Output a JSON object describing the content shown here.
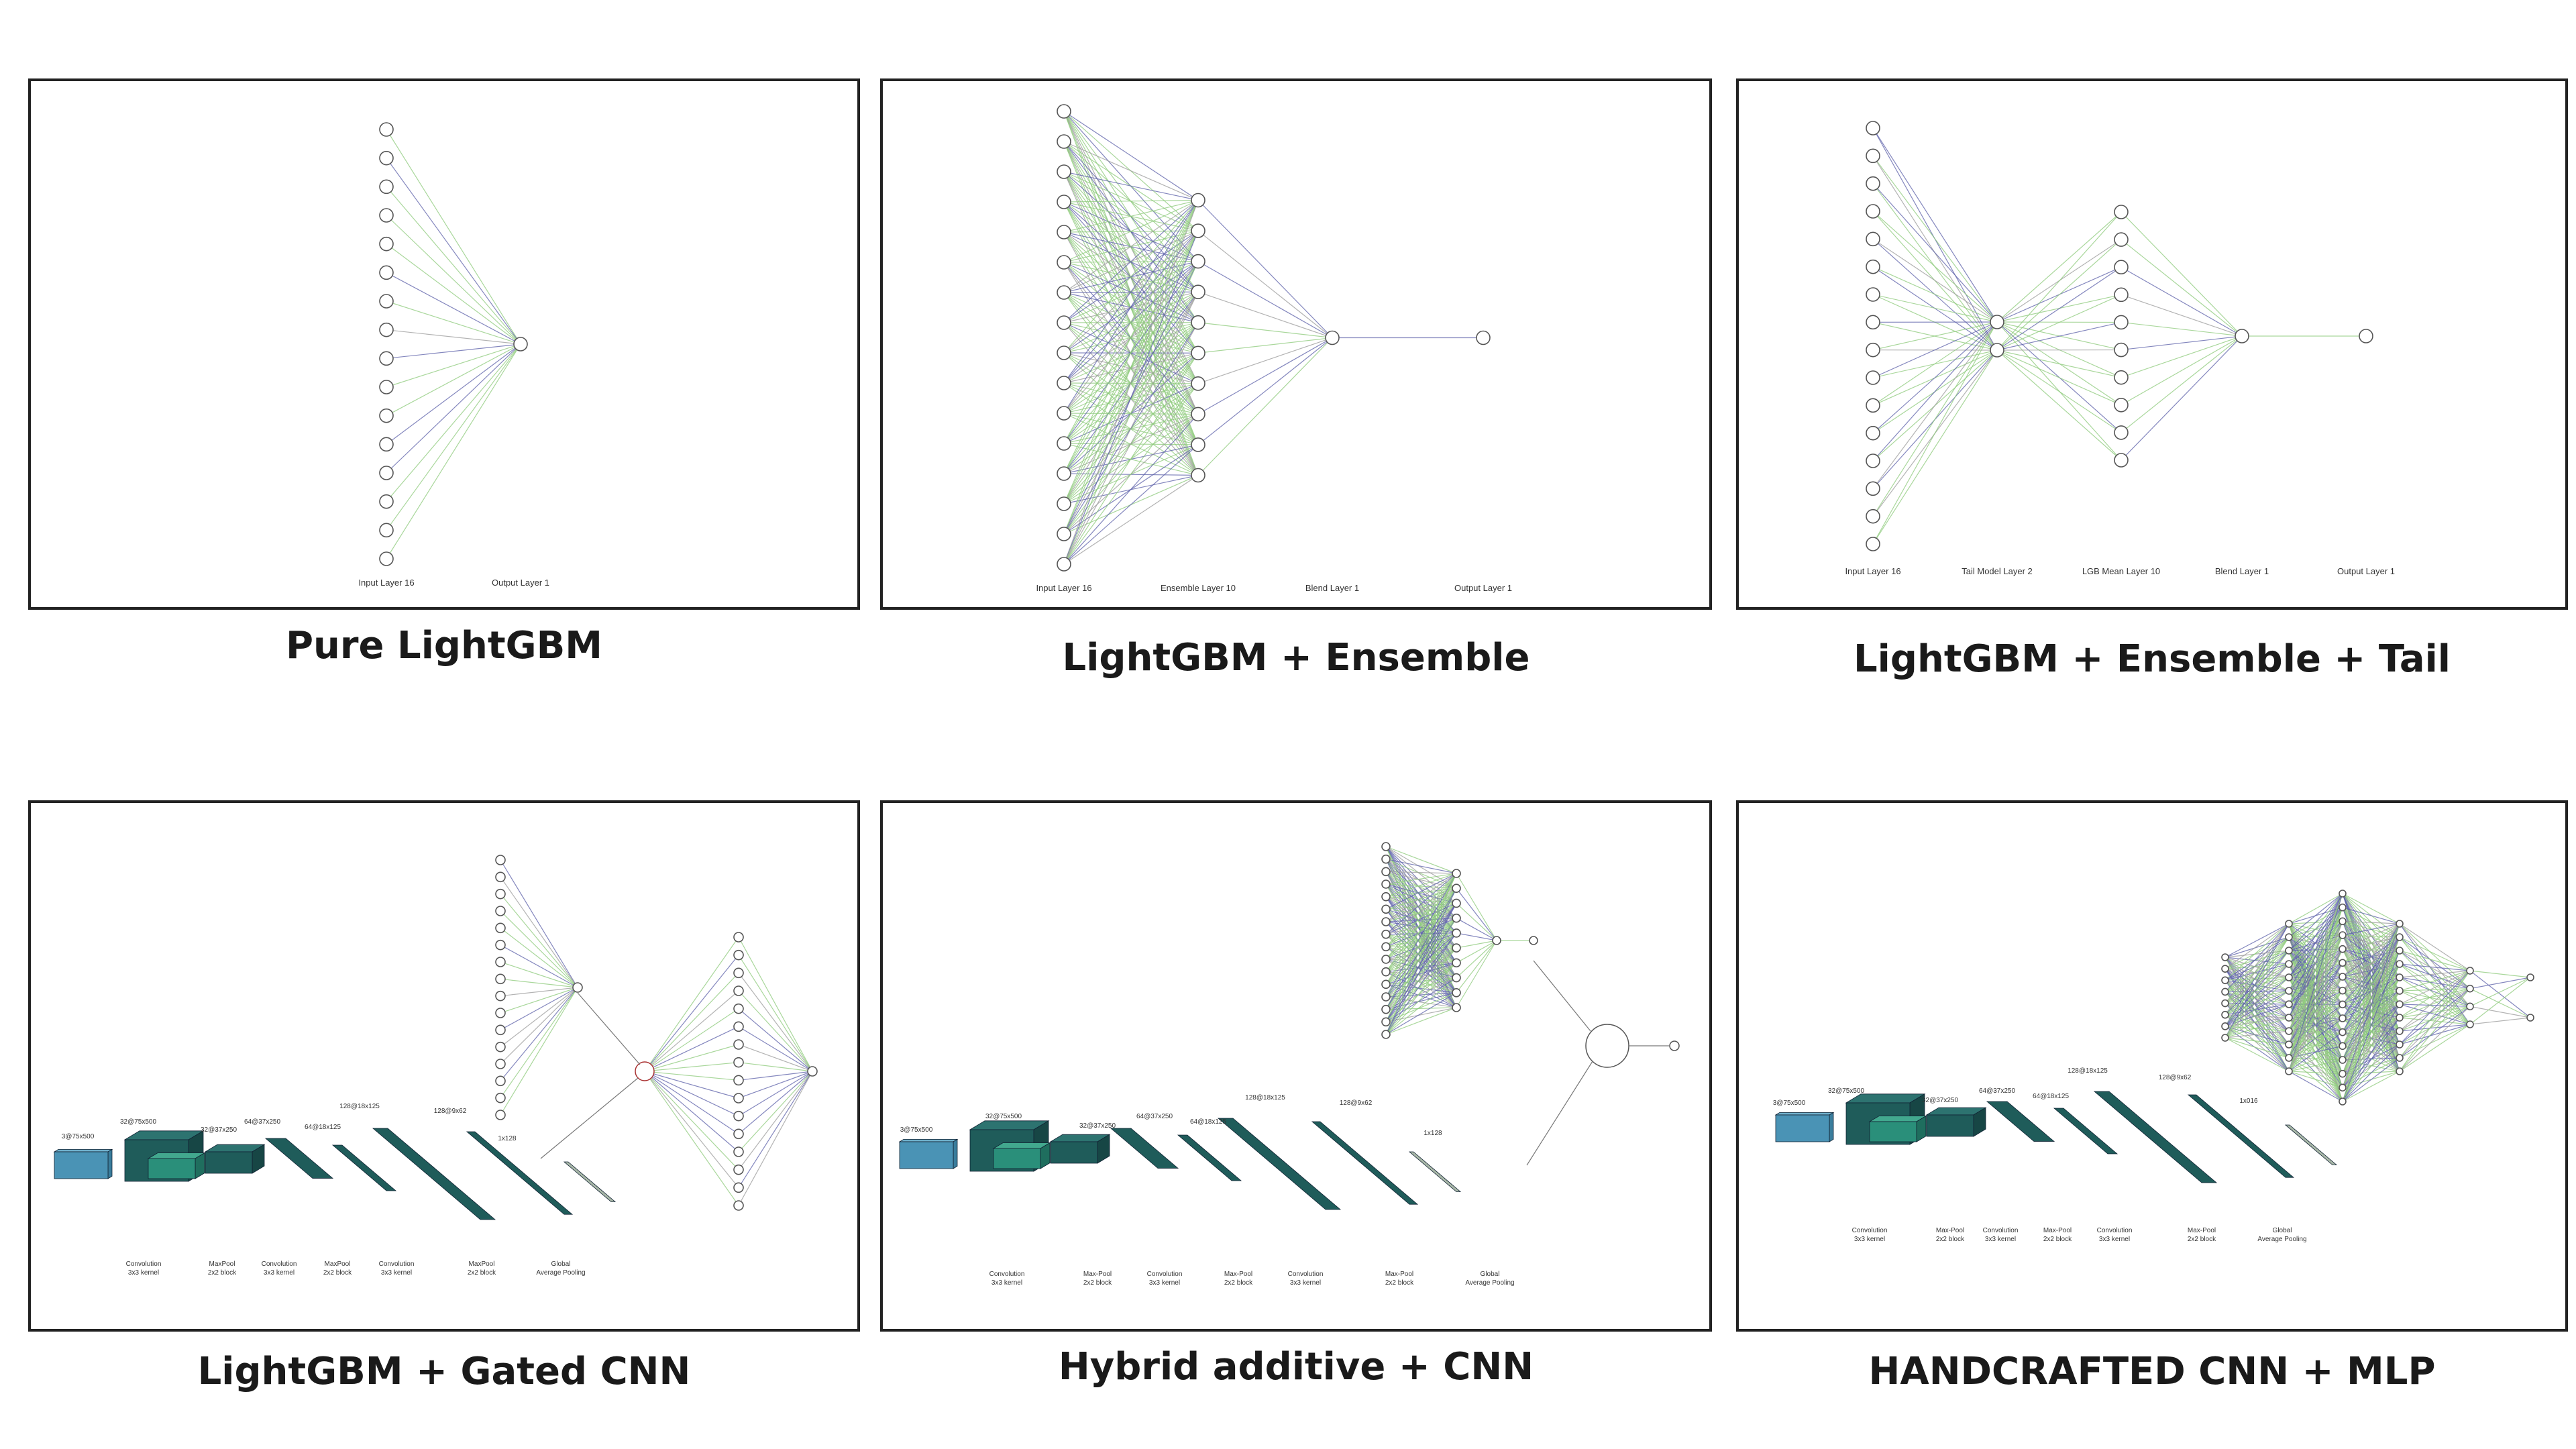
{
  "figure": {
    "colors": {
      "edge_green": "#8cc97a",
      "edge_purple": "#5b5fa8",
      "node_fill": "#ffffff",
      "node_stroke": "#555555",
      "cnn_dark": "#1f5c5a",
      "cnn_teal": "#2a8f7a",
      "input_blue": "#4a93b5",
      "gap_grey": "#a9b8a8"
    },
    "panels": [
      {
        "caption": "Pure LightGBM",
        "layers": [
          {
            "label": "Input Layer 16",
            "n": 16
          },
          {
            "label": "Output Layer 1",
            "n": 1
          }
        ]
      },
      {
        "caption": "LightGBM + Ensemble",
        "layers": [
          {
            "label": "Input Layer 16",
            "n": 16
          },
          {
            "label": "Ensemble Layer 10",
            "n": 10
          },
          {
            "label": "Blend Layer 1",
            "n": 1
          },
          {
            "label": "Output Layer 1",
            "n": 1
          }
        ]
      },
      {
        "caption": "LightGBM + Ensemble + Tail",
        "layers": [
          {
            "label": "Input Layer 16",
            "n": 16
          },
          {
            "label": "Tail Model Layer 2",
            "n": 2
          },
          {
            "label": "LGB Mean Layer 10",
            "n": 10
          },
          {
            "label": "Blend Layer 1",
            "n": 1
          },
          {
            "label": "Output Layer 1",
            "n": 1
          }
        ]
      },
      {
        "caption": "LightGBM + Gated CNN",
        "cnn_labels": [
          "Convolution 3x3 kernel",
          "MaxPool 2x2 block",
          "Convolution 3x3 kernel",
          "MaxPool 2x2 block",
          "Convolution 3x3 kernel",
          "MaxPool 2x2 block",
          "Global Average Pooling"
        ]
      },
      {
        "caption": "Hybrid additive + CNN",
        "cnn_labels": [
          "Convolution 3x3 kernel",
          "Max-Pool 2x2 block",
          "Convolution 3x3 kernel",
          "Max-Pool 2x2 block",
          "Convolution 3x3 kernel",
          "Max-Pool 2x2 block",
          "Global Average Pooling"
        ]
      },
      {
        "caption": "HANDCRAFTED CNN + MLP",
        "cnn_labels": [
          "Convolution 3x3 kernel",
          "Max-Pool 2x2 block",
          "Convolution 3x3 kernel",
          "Max-Pool 2x2 block",
          "Convolution 3x3 kernel",
          "Max-Pool 2x2 block",
          "Global Average Pooling"
        ]
      }
    ]
  }
}
